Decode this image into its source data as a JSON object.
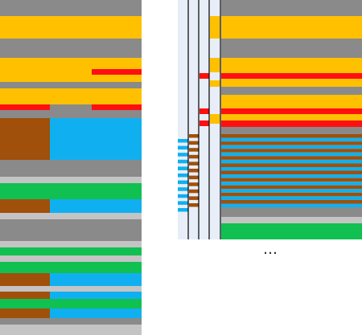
{
  "ellipsis": "…"
}
